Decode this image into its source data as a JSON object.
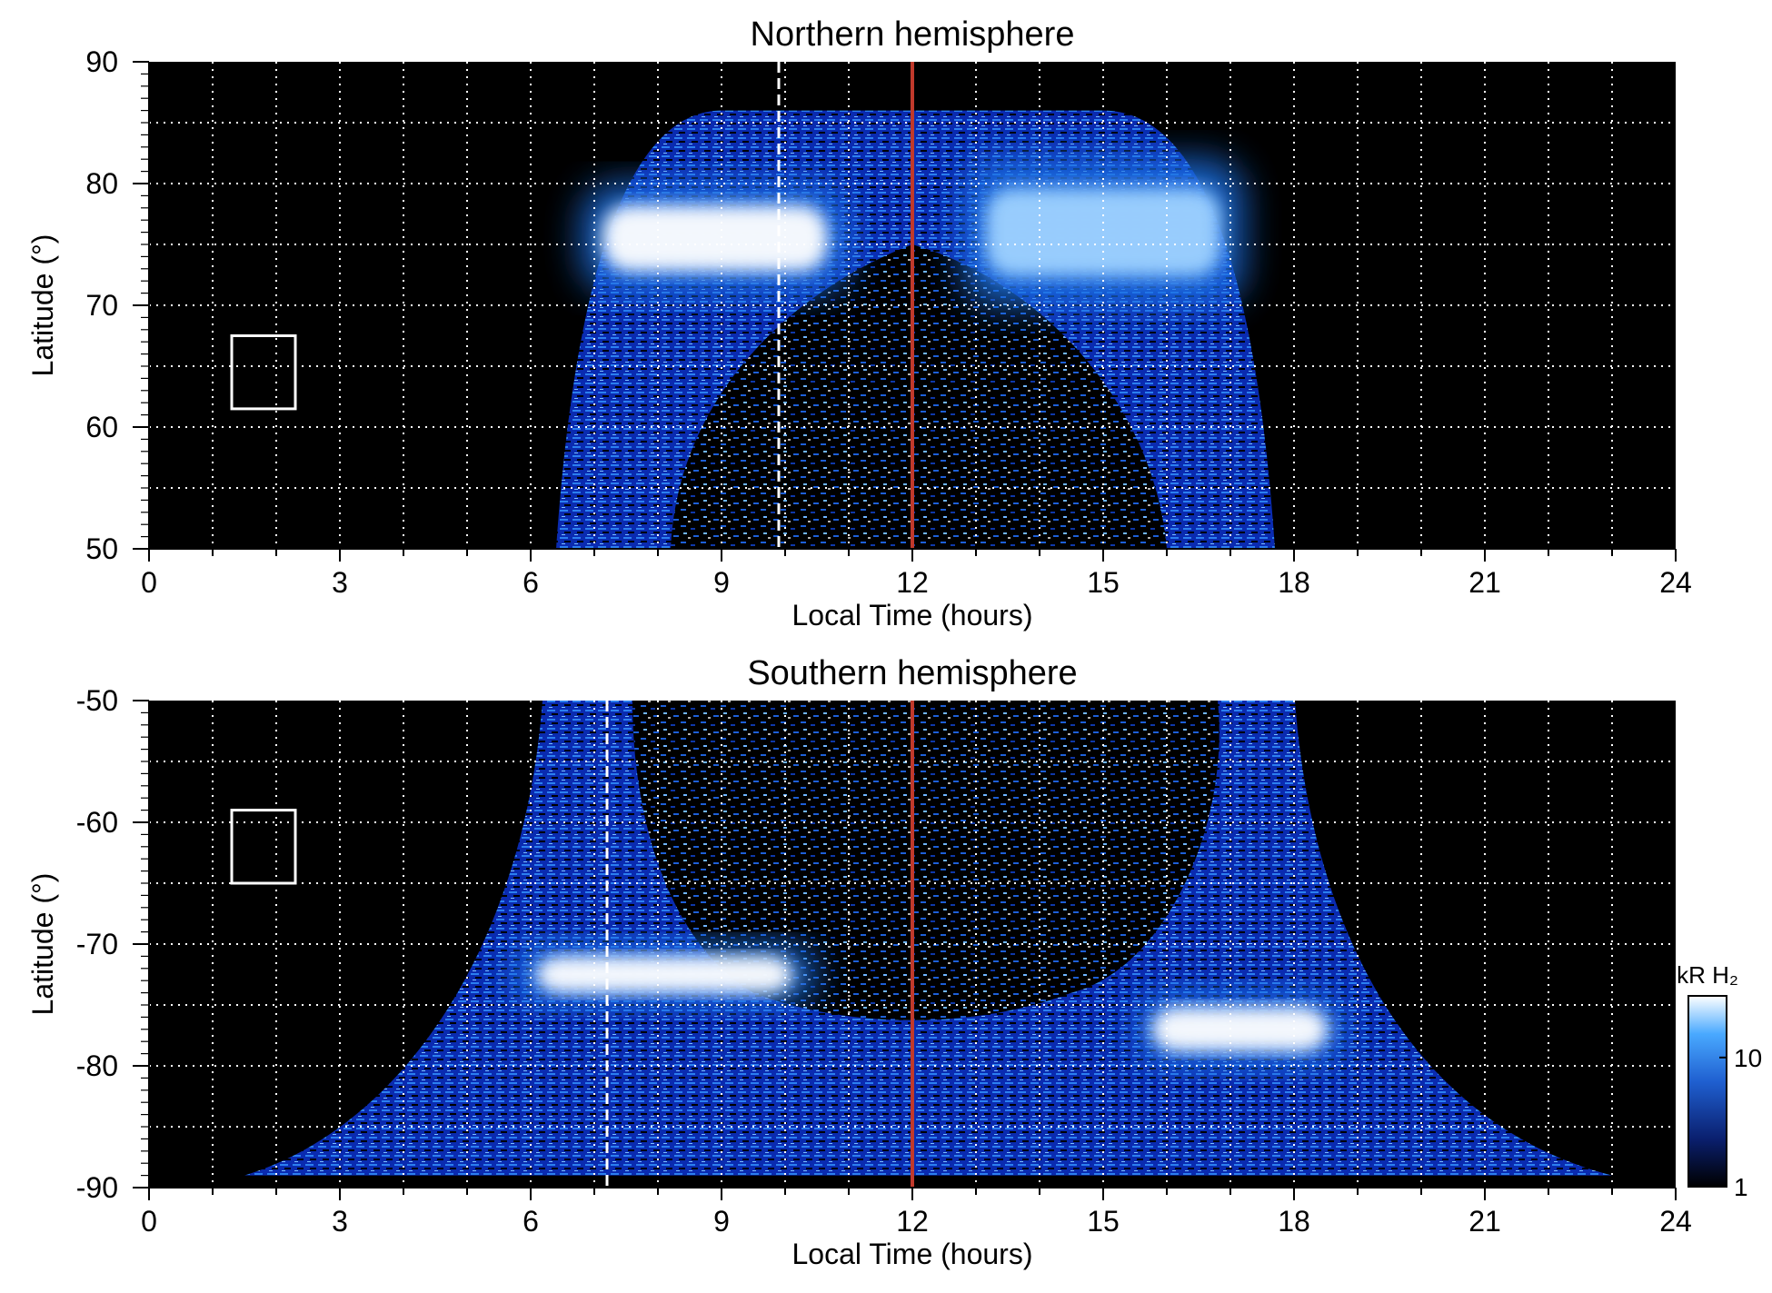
{
  "chart_data": [
    {
      "type": "heatmap",
      "title": "Northern hemisphere",
      "xlabel": "Local Time (hours)",
      "ylabel": "Latitude (°)",
      "xlim": [
        0,
        24
      ],
      "ylim": [
        50,
        90
      ],
      "xticks": [
        0,
        3,
        6,
        9,
        12,
        15,
        18,
        21,
        24
      ],
      "yticks": [
        50,
        60,
        70,
        80,
        90
      ],
      "xtick_labels": [
        "0",
        "3",
        "6",
        "9",
        "12",
        "15",
        "18",
        "21",
        "24"
      ],
      "ytick_labels": [
        "50",
        "60",
        "70",
        "80",
        "90"
      ],
      "grid": true,
      "coverage": {
        "lt_min": 6.4,
        "lt_max": 17.7,
        "lat_top": 86
      },
      "bright_bands": [
        {
          "lt_range": [
            6.8,
            11.0
          ],
          "lat_range": [
            71,
            80
          ],
          "level": "high"
        },
        {
          "lt_range": [
            12.8,
            17.2
          ],
          "lat_range": [
            70,
            82
          ],
          "level": "medium"
        }
      ],
      "reference_lines": [
        {
          "x": 9.9,
          "style": "dashed",
          "color": "#ffffff"
        },
        {
          "x": 12,
          "style": "solid",
          "color": "#c0392b"
        }
      ],
      "marker_box": {
        "lt_range": [
          1.3,
          2.3
        ],
        "lat_range": [
          61.5,
          67.5
        ]
      }
    },
    {
      "type": "heatmap",
      "title": "Southern hemisphere",
      "xlabel": "Local Time (hours)",
      "ylabel": "Latitude (°)",
      "xlim": [
        0,
        24
      ],
      "ylim": [
        -90,
        -50
      ],
      "xticks": [
        0,
        3,
        6,
        9,
        12,
        15,
        18,
        21,
        24
      ],
      "yticks": [
        -90,
        -80,
        -70,
        -60,
        -50
      ],
      "xtick_labels": [
        "0",
        "3",
        "6",
        "9",
        "12",
        "15",
        "18",
        "21",
        "24"
      ],
      "ytick_labels": [
        "-90",
        "-80",
        "-70",
        "-60",
        "-50"
      ],
      "grid": true,
      "coverage": {
        "lt_min": 5.9,
        "lt_max": 18.3,
        "lat_bottom": -89
      },
      "bright_bands": [
        {
          "lt_range": [
            5.7,
            10.5
          ],
          "lat_range": [
            -75,
            -70
          ],
          "level": "high"
        },
        {
          "lt_range": [
            15.5,
            18.8
          ],
          "lat_range": [
            -80,
            -74
          ],
          "level": "high"
        }
      ],
      "reference_lines": [
        {
          "x": 7.2,
          "style": "dashed",
          "color": "#ffffff"
        },
        {
          "x": 12,
          "style": "solid",
          "color": "#c0392b"
        }
      ],
      "marker_box": {
        "lt_range": [
          1.3,
          2.3
        ],
        "lat_range": [
          -65,
          -59
        ]
      }
    }
  ],
  "colorbar": {
    "label": "kR H₂",
    "scale": "log",
    "range": [
      1,
      30
    ],
    "ticks": [
      1,
      10
    ],
    "tick_labels": [
      "1",
      "10"
    ],
    "colors": [
      "#000000",
      "#0a1f6e",
      "#1f5fd0",
      "#49a9ff",
      "#ffffff"
    ]
  },
  "colors": {
    "background": "#000000",
    "emission_dim": "#0b2a8c",
    "emission_mid": "#1f6fe0",
    "emission_bright": "#ffffff",
    "noon_line": "#c0392b"
  }
}
